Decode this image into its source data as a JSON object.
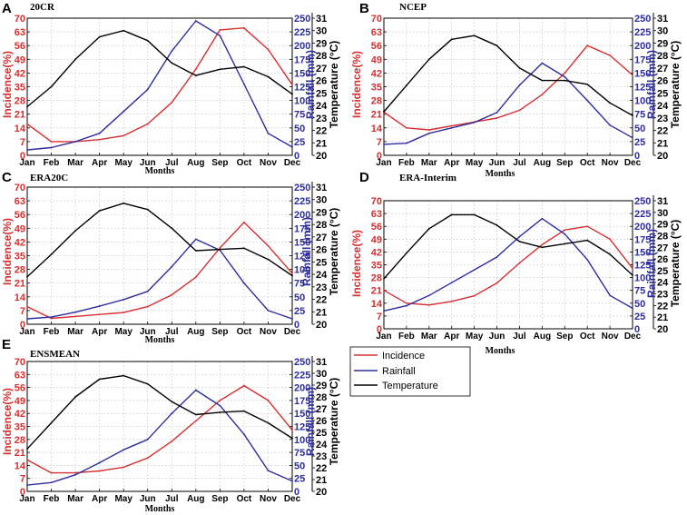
{
  "colors": {
    "incidence": "#d62f2f",
    "rainfall": "#2d2d9f",
    "temperature": "#000000"
  },
  "legend": {
    "incidence": "Incidence",
    "rainfall": "Rainfall",
    "temperature": "Temperature"
  },
  "chart_data": [
    {
      "type": "line",
      "panel": "A",
      "title": "20CR",
      "xlabel": "Months",
      "ylabel_left": "Incidence(%)",
      "ylabel_mid": "Rainfall (mm)",
      "ylabel_right": "Temperature (°C)",
      "categories": [
        "Jan",
        "Feb",
        "Mar",
        "Apr",
        "May",
        "Jun",
        "Jul",
        "Aug",
        "Sep",
        "Oct",
        "Nov",
        "Dec"
      ],
      "incidence_ylim": [
        0,
        70
      ],
      "incidence_ticks": [
        0,
        7,
        14,
        21,
        28,
        35,
        42,
        49,
        56,
        63,
        70
      ],
      "rainfall_ylim": [
        0,
        250
      ],
      "rainfall_ticks": [
        0,
        25,
        50,
        75,
        100,
        125,
        150,
        175,
        200,
        225,
        250
      ],
      "temperature_ylim": [
        20,
        31
      ],
      "temperature_ticks": [
        20,
        21,
        22,
        23,
        24,
        25,
        26,
        27,
        28,
        29,
        30,
        31
      ],
      "series": [
        {
          "name": "Incidence",
          "axis": "left",
          "values": [
            16,
            7,
            7,
            8,
            10,
            16,
            27,
            44,
            64,
            65,
            54,
            36
          ]
        },
        {
          "name": "Rainfall",
          "axis": "mid",
          "values": [
            10,
            14,
            25,
            40,
            80,
            120,
            190,
            245,
            218,
            130,
            40,
            15
          ]
        },
        {
          "name": "Temperature",
          "axis": "right",
          "values": [
            23.9,
            25.5,
            27.7,
            29.5,
            30.0,
            29.2,
            27.4,
            26.4,
            26.9,
            27.1,
            26.3,
            24.9
          ]
        }
      ]
    },
    {
      "type": "line",
      "panel": "B",
      "title": "NCEP",
      "xlabel": "Months",
      "ylabel_left": "Incidence(%)",
      "ylabel_mid": "Rainfall (mm)",
      "ylabel_right": "Temperature (°C)",
      "categories": [
        "Jan",
        "Feb",
        "Mar",
        "Apr",
        "May",
        "Jun",
        "Jul",
        "Aug",
        "Sep",
        "Oct",
        "Nov",
        "Dec"
      ],
      "incidence_ylim": [
        0,
        70
      ],
      "incidence_ticks": [
        0,
        7,
        14,
        21,
        28,
        35,
        42,
        49,
        56,
        63,
        70
      ],
      "rainfall_ylim": [
        0,
        250
      ],
      "rainfall_ticks": [
        0,
        25,
        50,
        75,
        100,
        125,
        150,
        175,
        200,
        225,
        250
      ],
      "temperature_ylim": [
        20,
        31
      ],
      "temperature_ticks": [
        20,
        21,
        22,
        23,
        24,
        25,
        26,
        27,
        28,
        29,
        30,
        31
      ],
      "series": [
        {
          "name": "Incidence",
          "axis": "left",
          "values": [
            22,
            14,
            13,
            15,
            17,
            19,
            23,
            31,
            42,
            56,
            51,
            41
          ]
        },
        {
          "name": "Rainfall",
          "axis": "mid",
          "values": [
            20,
            22,
            40,
            50,
            60,
            78,
            128,
            168,
            143,
            100,
            55,
            32
          ]
        },
        {
          "name": "Temperature",
          "axis": "right",
          "values": [
            23.5,
            25.6,
            27.7,
            29.3,
            29.6,
            28.8,
            27.0,
            26.0,
            26.0,
            25.7,
            24.2,
            23.2
          ]
        }
      ]
    },
    {
      "type": "line",
      "panel": "C",
      "title": "ERA20C",
      "xlabel": "Months",
      "ylabel_left": "Incidence(%)",
      "ylabel_mid": "Rainfall (mm)",
      "ylabel_right": "Temperature (°C)",
      "categories": [
        "Jan",
        "Feb",
        "Mar",
        "Apr",
        "May",
        "Jun",
        "Jul",
        "Aug",
        "Sep",
        "Oct",
        "Nov",
        "Dec"
      ],
      "incidence_ylim": [
        0,
        70
      ],
      "incidence_ticks": [
        0,
        7,
        14,
        21,
        28,
        35,
        42,
        49,
        56,
        63,
        70
      ],
      "rainfall_ylim": [
        0,
        250
      ],
      "rainfall_ticks": [
        0,
        25,
        50,
        75,
        100,
        125,
        150,
        175,
        200,
        225,
        250
      ],
      "temperature_ylim": [
        20,
        31
      ],
      "temperature_ticks": [
        20,
        21,
        22,
        23,
        24,
        25,
        26,
        27,
        28,
        29,
        30,
        31
      ],
      "series": [
        {
          "name": "Incidence",
          "axis": "left",
          "values": [
            9,
            3,
            4,
            5,
            6,
            9,
            15,
            24,
            39,
            52,
            40,
            26
          ]
        },
        {
          "name": "Rainfall",
          "axis": "mid",
          "values": [
            10,
            13,
            22,
            33,
            45,
            60,
            105,
            155,
            135,
            75,
            25,
            10
          ]
        },
        {
          "name": "Temperature",
          "axis": "right",
          "values": [
            23.8,
            25.6,
            27.5,
            29.1,
            29.7,
            29.2,
            27.7,
            25.9,
            26.0,
            26.1,
            25.2,
            23.9
          ]
        }
      ]
    },
    {
      "type": "line",
      "panel": "D",
      "title": "ERA-Interim",
      "xlabel": "Months",
      "ylabel_left": "Incidence(%)",
      "ylabel_mid": "Rainfall (mm)",
      "ylabel_right": "Temperature (°C)",
      "categories": [
        "Jan",
        "Feb",
        "Mar",
        "Apr",
        "May",
        "Jun",
        "Jul",
        "Aug",
        "Sep",
        "Oct",
        "Nov",
        "Dec"
      ],
      "incidence_ylim": [
        0,
        70
      ],
      "incidence_ticks": [
        0,
        7,
        14,
        21,
        28,
        35,
        42,
        49,
        56,
        63,
        70
      ],
      "rainfall_ylim": [
        0,
        250
      ],
      "rainfall_ticks": [
        0,
        25,
        50,
        75,
        100,
        125,
        150,
        175,
        200,
        225,
        250
      ],
      "temperature_ylim": [
        20,
        31
      ],
      "temperature_ticks": [
        20,
        21,
        22,
        23,
        24,
        25,
        26,
        27,
        28,
        29,
        30,
        31
      ],
      "series": [
        {
          "name": "Incidence",
          "axis": "left",
          "values": [
            21,
            14,
            13,
            15,
            18,
            25,
            36,
            46,
            54,
            56,
            49,
            33
          ]
        },
        {
          "name": "Rainfall",
          "axis": "mid",
          "values": [
            35,
            45,
            65,
            90,
            115,
            140,
            180,
            215,
            185,
            135,
            65,
            40
          ]
        },
        {
          "name": "Temperature",
          "axis": "right",
          "values": [
            24.3,
            26.5,
            28.6,
            29.8,
            29.8,
            28.9,
            27.5,
            27.0,
            27.3,
            27.6,
            26.4,
            24.6
          ]
        }
      ]
    },
    {
      "type": "line",
      "panel": "E",
      "title": "ENSMEAN",
      "xlabel": "Months",
      "ylabel_left": "Incidence(%)",
      "ylabel_mid": "Rainfall (mm)",
      "ylabel_right": "Temperature (°C)",
      "categories": [
        "Jan",
        "Feb",
        "Mar",
        "Apr",
        "May",
        "Jun",
        "Jul",
        "Aug",
        "Sep",
        "Oct",
        "Nov",
        "Dec"
      ],
      "incidence_ylim": [
        0,
        70
      ],
      "incidence_ticks": [
        0,
        7,
        14,
        21,
        28,
        35,
        42,
        49,
        56,
        63,
        70
      ],
      "rainfall_ylim": [
        0,
        250
      ],
      "rainfall_ticks": [
        0,
        25,
        50,
        75,
        100,
        125,
        150,
        175,
        200,
        225,
        250
      ],
      "temperature_ylim": [
        20,
        31
      ],
      "temperature_ticks": [
        20,
        21,
        22,
        23,
        24,
        25,
        26,
        27,
        28,
        29,
        30,
        31
      ],
      "series": [
        {
          "name": "Incidence",
          "axis": "left",
          "values": [
            17,
            10,
            10,
            11,
            13,
            18,
            27,
            38,
            49,
            57,
            49,
            33
          ]
        },
        {
          "name": "Rainfall",
          "axis": "mid",
          "values": [
            12,
            17,
            32,
            55,
            80,
            100,
            150,
            195,
            165,
            110,
            40,
            20
          ]
        },
        {
          "name": "Temperature",
          "axis": "right",
          "values": [
            23.6,
            25.8,
            28.0,
            29.5,
            29.8,
            29.1,
            27.6,
            26.5,
            26.7,
            26.8,
            25.8,
            24.5
          ]
        }
      ]
    }
  ]
}
